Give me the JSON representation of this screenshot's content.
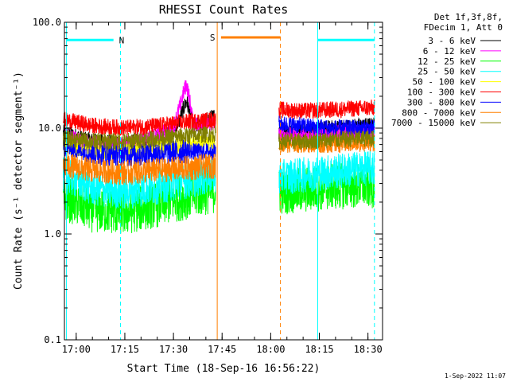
{
  "chart_data": {
    "type": "line",
    "title": "RHESSI Count Rates",
    "xlabel": "Start Time (18-Sep-16 16:56:22)",
    "ylabel": "Count Rate (s⁻¹ detector segment⁻¹)",
    "yscale": "log",
    "ylim": [
      0.1,
      100.0
    ],
    "xlim": [
      "16:56:22",
      "18:34:30"
    ],
    "x_ticks": [
      "17:00",
      "17:15",
      "17:30",
      "17:45",
      "18:00",
      "18:15",
      "18:30"
    ],
    "y_ticks": [
      "0.1",
      "1.0",
      "10.0",
      "100.0"
    ],
    "legend_header": [
      "Det 1f,3f,8f,",
      "FDecim 1, Att 0"
    ],
    "legend_position": "outside-right",
    "footer": "1-Sep-2022 11:07",
    "data_gap": [
      "17:43:30",
      "18:02:30"
    ],
    "series": [
      {
        "name": "3 - 6 keV",
        "color": "#000000",
        "x": [
          "16:56",
          "17:05",
          "17:15",
          "17:25",
          "17:30",
          "17:32",
          "17:34",
          "17:36",
          "17:43",
          "18:02",
          "18:10",
          "18:20",
          "18:30",
          "18:32"
        ],
        "values": [
          9.0,
          7.5,
          7.0,
          8.0,
          9.5,
          12.0,
          18.0,
          10.0,
          13.0,
          9.0,
          9.5,
          10.0,
          10.5,
          10.5
        ]
      },
      {
        "name": "6 - 12 keV",
        "color": "#ff00ff",
        "x": [
          "16:56",
          "17:05",
          "17:15",
          "17:25",
          "17:30",
          "17:32",
          "17:34",
          "17:36",
          "17:43",
          "18:02",
          "18:10",
          "18:20",
          "18:30",
          "18:32"
        ],
        "values": [
          8.5,
          7.0,
          7.0,
          8.5,
          10.0,
          16.0,
          26.0,
          11.0,
          11.0,
          8.5,
          8.5,
          9.0,
          9.0,
          9.0
        ]
      },
      {
        "name": "12 - 25 keV",
        "color": "#00ff00",
        "x": [
          "16:56",
          "17:05",
          "17:15",
          "17:25",
          "17:35",
          "17:43",
          "18:02",
          "18:10",
          "18:20",
          "18:30",
          "18:32"
        ],
        "values": [
          2.2,
          1.7,
          1.6,
          1.9,
          2.3,
          2.6,
          2.5,
          2.6,
          2.8,
          2.9,
          2.9
        ]
      },
      {
        "name": "25 - 50 keV",
        "color": "#00ffff",
        "x": [
          "16:56",
          "17:05",
          "17:15",
          "17:25",
          "17:35",
          "17:43",
          "18:02",
          "18:10",
          "18:20",
          "18:30",
          "18:32"
        ],
        "values": [
          3.6,
          2.7,
          2.5,
          2.8,
          3.2,
          3.6,
          3.4,
          3.6,
          3.9,
          4.2,
          4.2
        ]
      },
      {
        "name": "50 - 100 keV",
        "color": "#ffff00",
        "x": [
          "16:56",
          "17:05",
          "17:15",
          "17:25",
          "17:35",
          "17:43"
        ],
        "values": [
          7.0,
          6.0,
          6.0,
          6.5,
          7.0,
          7.5
        ]
      },
      {
        "name": "100 - 300 keV",
        "color": "#ff0000",
        "x": [
          "16:56",
          "17:05",
          "17:15",
          "17:25",
          "17:35",
          "17:43",
          "18:02",
          "18:10",
          "18:20",
          "18:30",
          "18:32"
        ],
        "values": [
          12.0,
          10.5,
          10.0,
          10.5,
          11.5,
          12.0,
          15.0,
          14.5,
          15.0,
          15.5,
          15.5
        ]
      },
      {
        "name": "300 - 800 keV",
        "color": "#0000ff",
        "x": [
          "16:56",
          "17:05",
          "17:15",
          "17:25",
          "17:35",
          "17:43",
          "18:02",
          "18:10",
          "18:20",
          "18:30",
          "18:32"
        ],
        "values": [
          6.5,
          5.8,
          5.6,
          5.8,
          6.0,
          6.0,
          11.0,
          10.5,
          10.0,
          10.0,
          10.0
        ]
      },
      {
        "name": "800 - 7000 keV",
        "color": "#ff8000",
        "x": [
          "16:56",
          "17:05",
          "17:15",
          "17:25",
          "17:35",
          "17:43",
          "18:02",
          "18:10",
          "18:20",
          "18:30",
          "18:32"
        ],
        "values": [
          4.5,
          4.0,
          3.8,
          4.0,
          4.2,
          4.4,
          7.0,
          7.0,
          7.0,
          7.2,
          7.2
        ]
      },
      {
        "name": "7000 - 15000 keV",
        "color": "#808000",
        "x": [
          "16:56",
          "17:05",
          "17:15",
          "17:25",
          "17:35",
          "17:43",
          "18:02",
          "18:10",
          "18:20",
          "18:30",
          "18:32"
        ],
        "values": [
          8.0,
          7.5,
          7.5,
          8.0,
          8.5,
          8.8,
          7.5,
          7.5,
          7.8,
          8.0,
          8.0
        ]
      }
    ],
    "annotations": [
      {
        "label": "N",
        "color": "#00ffff",
        "line_start": "16:57:00",
        "line_end": "17:13:40",
        "bar_start": "16:57:00",
        "bar_end": "17:11:30",
        "bar_value": 68
      },
      {
        "label": "S",
        "color": "#ff8000",
        "line_start": "17:43:30",
        "line_end": "18:03:00",
        "bar_start": "17:44:40",
        "bar_end": "18:03:00",
        "bar_value": 72
      },
      {
        "label": "",
        "color": "#00ffff",
        "line_start": "18:14:30",
        "line_end": "18:32:00",
        "bar_start": "18:14:30",
        "bar_end": "18:32:00",
        "bar_value": 68
      }
    ]
  }
}
